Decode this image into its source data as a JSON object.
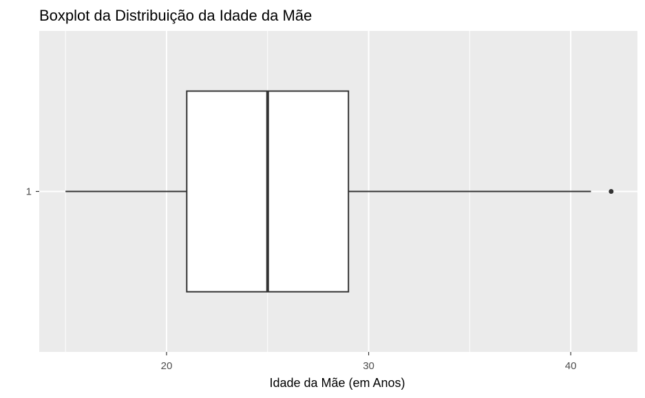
{
  "chart_data": {
    "type": "boxplot",
    "title": "Boxplot da Distribuição da Idade da Mãe",
    "xlabel": "Idade da Mãe (em Anos)",
    "ylabel": "",
    "orientation": "horizontal",
    "categories": [
      "1"
    ],
    "xlim": [
      13.7,
      43.3
    ],
    "x_ticks": [
      20,
      30,
      40
    ],
    "x_tick_labels": [
      "20",
      "30",
      "40"
    ],
    "boxes": [
      {
        "category": "1",
        "min": 15,
        "q1": 21,
        "median": 25,
        "q3": 29,
        "max": 41,
        "outliers": [
          42
        ]
      }
    ],
    "grid": true,
    "colors": {
      "panel_background": "#ebebeb",
      "grid": "#ffffff",
      "box_fill": "#ffffff",
      "box_line": "#333333",
      "tick": "#333333",
      "tick_label": "#4d4d4d",
      "text": "#000000"
    }
  }
}
